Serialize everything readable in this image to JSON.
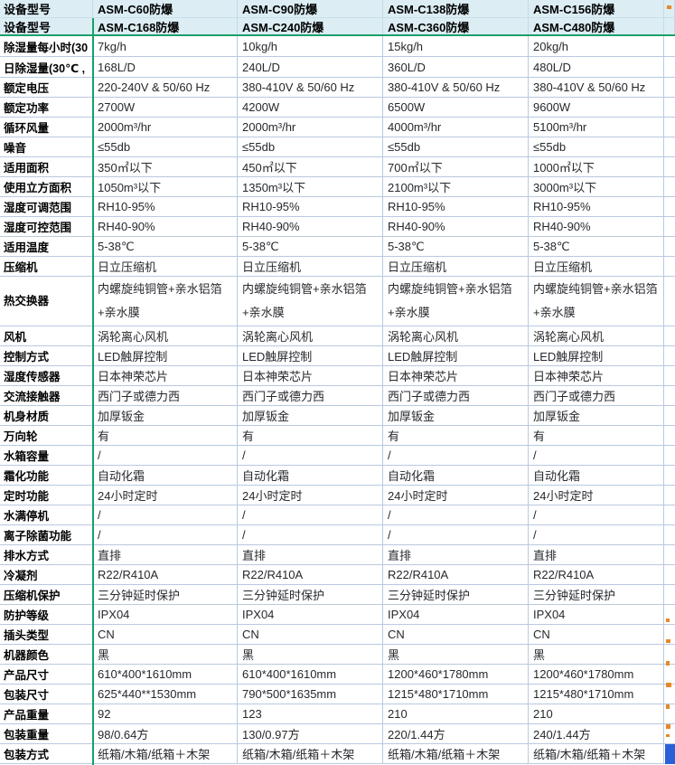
{
  "table": {
    "header": {
      "rows": [
        [
          "设备型号",
          "ASM-C60防爆",
          "ASM-C90防爆",
          "ASM-C138防爆",
          "ASM-C156防爆"
        ],
        [
          "设备型号",
          "ASM-C168防爆",
          "ASM-C240防爆",
          "ASM-C360防爆",
          "ASM-C480防爆"
        ]
      ]
    },
    "rows": [
      {
        "label": "除湿量每小时(30",
        "values": [
          "7kg/h",
          "10kg/h",
          "15kg/h",
          "20kg/h"
        ]
      },
      {
        "label": "日除湿量(30℃ ,",
        "values": [
          "168L/D",
          "240L/D",
          "360L/D",
          "480L/D"
        ]
      },
      {
        "label": "额定电压",
        "values": [
          "220-240V & 50/60 Hz",
          "380-410V & 50/60 Hz",
          "380-410V & 50/60 Hz",
          "380-410V & 50/60 Hz"
        ]
      },
      {
        "label": "额定功率",
        "values": [
          "2700W",
          "4200W",
          "6500W",
          "9600W"
        ]
      },
      {
        "label": "循环风量",
        "values": [
          "2000m³/hr",
          "2000m³/hr",
          "4000m³/hr",
          "5100m³/hr"
        ]
      },
      {
        "label": "噪音",
        "values": [
          "≤55db",
          "≤55db",
          "≤55db",
          "≤55db"
        ]
      },
      {
        "label": "适用面积",
        "values": [
          "350㎡以下",
          "450㎡以下",
          "700㎡以下",
          "1000㎡以下"
        ]
      },
      {
        "label": "使用立方面积",
        "values": [
          "1050m³以下",
          "1350m³以下",
          "2100m³以下",
          "3000m³以下"
        ]
      },
      {
        "label": "湿度可调范围",
        "values": [
          "RH10-95%",
          "RH10-95%",
          "RH10-95%",
          "RH10-95%"
        ]
      },
      {
        "label": "湿度可控范围",
        "values": [
          "RH40-90%",
          "RH40-90%",
          "RH40-90%",
          "RH40-90%"
        ]
      },
      {
        "label": "适用温度",
        "values": [
          "5-38℃",
          "5-38℃",
          "5-38℃",
          "5-38℃"
        ]
      },
      {
        "label": "压缩机",
        "values": [
          "日立压缩机",
          "日立压缩机",
          "日立压缩机",
          "日立压缩机"
        ]
      },
      {
        "label": "热交换器",
        "values": [
          "内螺旋纯铜管+亲水铝箔+亲水膜",
          "内螺旋纯铜管+亲水铝箔+亲水膜",
          "内螺旋纯铜管+亲水铝箔+亲水膜",
          "内螺旋纯铜管+亲水铝箔+亲水膜"
        ]
      },
      {
        "label": "风机",
        "values": [
          "涡轮离心风机",
          "涡轮离心风机",
          "涡轮离心风机",
          "涡轮离心风机"
        ]
      },
      {
        "label": "控制方式",
        "values": [
          "LED触屏控制",
          "LED触屏控制",
          "LED触屏控制",
          "LED触屏控制"
        ]
      },
      {
        "label": "湿度传感器",
        "values": [
          "日本神荣芯片",
          "日本神荣芯片",
          "日本神荣芯片",
          "日本神荣芯片"
        ]
      },
      {
        "label": "交流接触器",
        "values": [
          "西门子或德力西",
          "西门子或德力西",
          "西门子或德力西",
          "西门子或德力西"
        ]
      },
      {
        "label": "机身材质",
        "values": [
          "加厚钣金",
          "加厚钣金",
          "加厚钣金",
          "加厚钣金"
        ]
      },
      {
        "label": "万向轮",
        "values": [
          "有",
          "有",
          "有",
          "有"
        ]
      },
      {
        "label": "水箱容量",
        "values": [
          "/",
          "/",
          "/",
          "/"
        ]
      },
      {
        "label": "霜化功能",
        "values": [
          "自动化霜",
          "自动化霜",
          "自动化霜",
          "自动化霜"
        ]
      },
      {
        "label": "定时功能",
        "values": [
          "24小时定时",
          "24小时定时",
          "24小时定时",
          "24小时定时"
        ]
      },
      {
        "label": "水满停机",
        "values": [
          "/",
          "/",
          "/",
          "/"
        ]
      },
      {
        "label": "离子除菌功能",
        "values": [
          "/",
          "/",
          "/",
          "/"
        ]
      },
      {
        "label": "排水方式",
        "values": [
          "直排",
          "直排",
          "直排",
          "直排"
        ]
      },
      {
        "label": "冷凝剂",
        "values": [
          "R22/R410A",
          "R22/R410A",
          "R22/R410A",
          "R22/R410A"
        ]
      },
      {
        "label": "压缩机保护",
        "values": [
          "三分钟延时保护",
          "三分钟延时保护",
          "三分钟延时保护",
          "三分钟延时保护"
        ]
      },
      {
        "label": "防护等级",
        "values": [
          "IPX04",
          "IPX04",
          "IPX04",
          "IPX04"
        ]
      },
      {
        "label": "插头类型",
        "values": [
          "CN",
          "CN",
          "CN",
          "CN"
        ]
      },
      {
        "label": "机器颜色",
        "values": [
          "黑",
          "黑",
          "黑",
          "黑"
        ]
      },
      {
        "label": "产品尺寸",
        "values": [
          "610*400*1610mm",
          "610*400*1610mm",
          "1200*460*1780mm",
          "1200*460*1780mm"
        ]
      },
      {
        "label": "包装尺寸",
        "values": [
          "625*440**1530mm",
          "790*500*1635mm",
          "1215*480*1710mm",
          "1215*480*1710mm"
        ]
      },
      {
        "label": "产品重量",
        "values": [
          "92",
          "123",
          "210",
          "210"
        ]
      },
      {
        "label": "包装重量",
        "values": [
          "98/0.64方",
          "130/0.97方",
          "220/1.44方",
          "240/1.44方"
        ]
      },
      {
        "label": "包装方式",
        "values": [
          "纸箱/木箱/纸箱＋木架",
          "纸箱/木箱/纸箱＋木架",
          "纸箱/木箱/纸箱＋木架",
          "纸箱/木箱/纸箱＋木架"
        ]
      }
    ]
  },
  "colors": {
    "header_bg": "#dcedf4",
    "grid_line": "#b9c9e0",
    "freeze_line_green": "#18a06c",
    "label_text": "#000000",
    "value_text": "#26282d",
    "edge_fragment_orange": "#e8882a",
    "edge_selection_blue": "#2a5fd7"
  }
}
